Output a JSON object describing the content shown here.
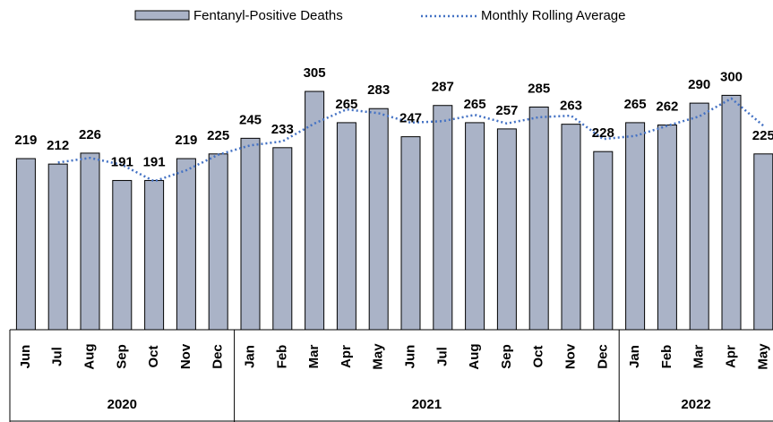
{
  "chart_data": {
    "type": "bar",
    "categories": [
      "Jun",
      "Jul",
      "Aug",
      "Sep",
      "Oct",
      "Nov",
      "Dec",
      "Jan",
      "Feb",
      "Mar",
      "Apr",
      "May",
      "Jun",
      "Jul",
      "Aug",
      "Sep",
      "Oct",
      "Nov",
      "Dec",
      "Jan",
      "Feb",
      "Mar",
      "Apr",
      "May"
    ],
    "category_groups": [
      {
        "label": "2020",
        "count": 7
      },
      {
        "label": "2021",
        "count": 12
      },
      {
        "label": "2022",
        "count": 5
      }
    ],
    "series": [
      {
        "name": "Fentanyl-Positive Deaths",
        "type": "bar",
        "color": "#aab3c7",
        "values": [
          219,
          212,
          226,
          191,
          191,
          219,
          225,
          245,
          233,
          305,
          265,
          283,
          247,
          287,
          265,
          257,
          285,
          263,
          228,
          265,
          262,
          290,
          300,
          225
        ]
      },
      {
        "name": "Monthly Rolling Average",
        "type": "line",
        "color": "#4472c4",
        "values": [
          null,
          214,
          220,
          211,
          190,
          204,
          224,
          236,
          241,
          264,
          282,
          277,
          265,
          267,
          275,
          264,
          272,
          274,
          244,
          248,
          261,
          273,
          296,
          261
        ]
      }
    ],
    "ylim": [
      0,
      422
    ],
    "data_labels": true,
    "legend": "top"
  }
}
